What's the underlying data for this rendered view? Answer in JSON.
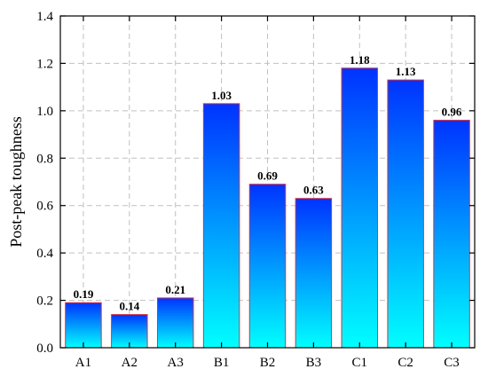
{
  "chart_data": {
    "type": "bar",
    "title": "",
    "xlabel": "",
    "ylabel": "Post-peak toughness",
    "categories": [
      "A1",
      "A2",
      "A3",
      "B1",
      "B2",
      "B3",
      "C1",
      "C2",
      "C3"
    ],
    "values": [
      0.19,
      0.14,
      0.21,
      1.03,
      0.69,
      0.63,
      1.18,
      1.13,
      0.96
    ],
    "value_labels": [
      "0.19",
      "0.14",
      "0.21",
      "1.03",
      "0.69",
      "0.63",
      "1.18",
      "1.13",
      "0.96"
    ],
    "ylim": [
      0,
      1.4
    ],
    "yticks": [
      "0.0",
      "0.2",
      "0.4",
      "0.6",
      "0.8",
      "1.0",
      "1.2",
      "1.4"
    ],
    "grid": true,
    "legend": "none",
    "colors": {
      "bar_top": "#0033ff",
      "bar_bottom": "#00ffff",
      "bar_edge": "#e0303a",
      "grid": "#c0c0c0",
      "axis": "#000000"
    }
  }
}
